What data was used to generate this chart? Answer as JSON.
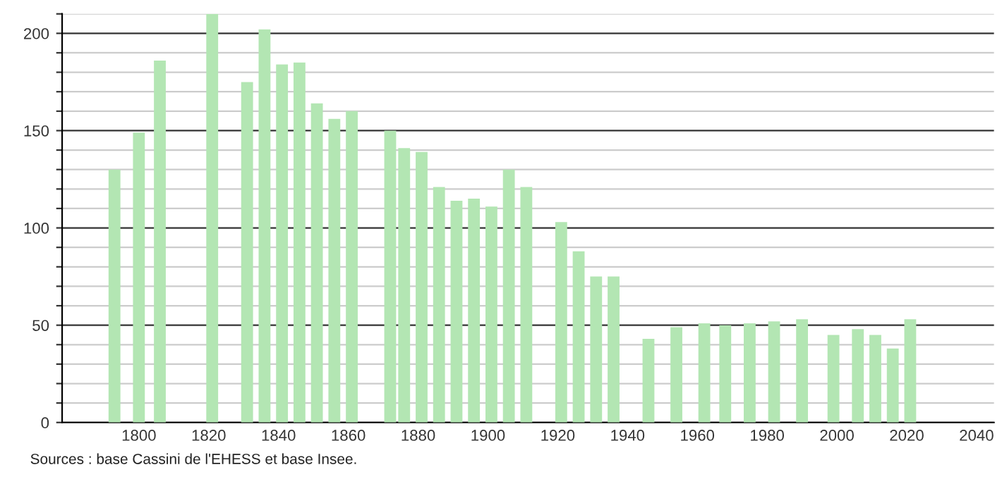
{
  "chart_data": {
    "type": "bar",
    "x": [
      1793,
      1800,
      1806,
      1821,
      1831,
      1836,
      1841,
      1846,
      1851,
      1856,
      1861,
      1872,
      1876,
      1881,
      1886,
      1891,
      1896,
      1901,
      1906,
      1911,
      1921,
      1926,
      1931,
      1936,
      1946,
      1954,
      1962,
      1968,
      1975,
      1982,
      1990,
      1999,
      2006,
      2011,
      2016,
      2021
    ],
    "values": [
      130,
      149,
      186,
      210,
      175,
      202,
      184,
      185,
      164,
      156,
      160,
      150,
      141,
      139,
      121,
      114,
      115,
      111,
      130,
      121,
      103,
      88,
      75,
      75,
      43,
      49,
      51,
      50,
      51,
      52,
      53,
      45,
      48,
      45,
      38,
      53
    ],
    "color": "#b3e6b3",
    "xlim": [
      1778,
      2045
    ],
    "xticks": [
      1800,
      1820,
      1840,
      1860,
      1880,
      1900,
      1920,
      1940,
      1960,
      1980,
      2000,
      2020,
      2040
    ],
    "ylim": [
      0,
      210
    ],
    "yticks": [
      0,
      {
        "value": 10,
        "label": null
      },
      {
        "value": 20,
        "label": null
      },
      {
        "value": 30,
        "label": null
      },
      {
        "value": 40,
        "label": null
      },
      50,
      {
        "value": 60,
        "label": null
      },
      {
        "value": 70,
        "label": null
      },
      {
        "value": 80,
        "label": null
      },
      {
        "value": 90,
        "label": null
      },
      100,
      {
        "value": 110,
        "label": null
      },
      {
        "value": 120,
        "label": null
      },
      {
        "value": 130,
        "label": null
      },
      {
        "value": 140,
        "label": null
      },
      150,
      {
        "value": 160,
        "label": null
      },
      {
        "value": 170,
        "label": null
      },
      {
        "value": 180,
        "label": null
      },
      {
        "value": 190,
        "label": null
      },
      200,
      {
        "value": 210,
        "label": null
      }
    ],
    "grid": "y",
    "annotations": [
      "Sources : base Cassini de l'EHESS et base Insee."
    ]
  }
}
